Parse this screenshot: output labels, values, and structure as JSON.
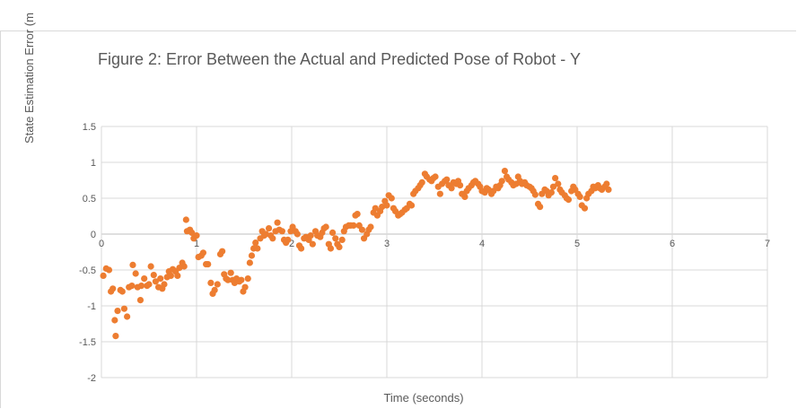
{
  "chart_data": {
    "type": "scatter",
    "title": "Figure 2: Error Between the Actual and Predicted Pose of Robot - Y",
    "xlabel": "Time (seconds)",
    "ylabel": "State Estimation Error (m",
    "xlim": [
      0,
      7
    ],
    "ylim": [
      -2,
      1.5
    ],
    "x_ticks": [
      "0",
      "1",
      "2",
      "3",
      "4",
      "5",
      "6",
      "7"
    ],
    "y_ticks": [
      "1.5",
      "1",
      "0.5",
      "0",
      "-0.5",
      "-1",
      "-1.5",
      "-2"
    ],
    "grid": true,
    "legend": "none",
    "marker_color": "#ED7D31",
    "series": [
      {
        "points": [
          [
            0.02,
            -0.58
          ],
          [
            0.05,
            -0.48
          ],
          [
            0.08,
            -0.5
          ],
          [
            0.1,
            -0.8
          ],
          [
            0.12,
            -0.76
          ],
          [
            0.14,
            -1.2
          ],
          [
            0.15,
            -1.42
          ],
          [
            0.17,
            -1.07
          ],
          [
            0.2,
            -0.78
          ],
          [
            0.22,
            -0.8
          ],
          [
            0.24,
            -1.04
          ],
          [
            0.27,
            -1.15
          ],
          [
            0.29,
            -0.74
          ],
          [
            0.32,
            -0.72
          ],
          [
            0.33,
            -0.43
          ],
          [
            0.36,
            -0.55
          ],
          [
            0.38,
            -0.74
          ],
          [
            0.41,
            -0.92
          ],
          [
            0.42,
            -0.72
          ],
          [
            0.45,
            -0.62
          ],
          [
            0.48,
            -0.72
          ],
          [
            0.5,
            -0.7
          ],
          [
            0.52,
            -0.45
          ],
          [
            0.55,
            -0.57
          ],
          [
            0.57,
            -0.66
          ],
          [
            0.6,
            -0.74
          ],
          [
            0.62,
            -0.62
          ],
          [
            0.64,
            -0.76
          ],
          [
            0.66,
            -0.7
          ],
          [
            0.69,
            -0.6
          ],
          [
            0.71,
            -0.52
          ],
          [
            0.73,
            -0.58
          ],
          [
            0.75,
            -0.49
          ],
          [
            0.78,
            -0.52
          ],
          [
            0.8,
            -0.58
          ],
          [
            0.82,
            -0.47
          ],
          [
            0.85,
            -0.4
          ],
          [
            0.87,
            -0.45
          ],
          [
            0.89,
            0.2
          ],
          [
            0.9,
            0.04
          ],
          [
            0.93,
            0.06
          ],
          [
            0.95,
            0.02
          ],
          [
            0.97,
            -0.06
          ],
          [
            1.0,
            -0.02
          ],
          [
            1.02,
            -0.32
          ],
          [
            1.05,
            -0.3
          ],
          [
            1.07,
            -0.26
          ],
          [
            1.1,
            -0.42
          ],
          [
            1.12,
            -0.42
          ],
          [
            1.15,
            -0.68
          ],
          [
            1.17,
            -0.83
          ],
          [
            1.19,
            -0.78
          ],
          [
            1.22,
            -0.7
          ],
          [
            1.25,
            -0.28
          ],
          [
            1.27,
            -0.24
          ],
          [
            1.29,
            -0.56
          ],
          [
            1.31,
            -0.62
          ],
          [
            1.33,
            -0.64
          ],
          [
            1.36,
            -0.54
          ],
          [
            1.38,
            -0.64
          ],
          [
            1.4,
            -0.68
          ],
          [
            1.42,
            -0.62
          ],
          [
            1.45,
            -0.66
          ],
          [
            1.47,
            -0.64
          ],
          [
            1.49,
            -0.8
          ],
          [
            1.51,
            -0.74
          ],
          [
            1.54,
            -0.62
          ],
          [
            1.56,
            -0.4
          ],
          [
            1.58,
            -0.3
          ],
          [
            1.6,
            -0.2
          ],
          [
            1.62,
            -0.12
          ],
          [
            1.64,
            -0.2
          ],
          [
            1.67,
            -0.06
          ],
          [
            1.69,
            0.04
          ],
          [
            1.71,
            -0.02
          ],
          [
            1.73,
            0.0
          ],
          [
            1.76,
            0.08
          ],
          [
            1.78,
            -0.02
          ],
          [
            1.8,
            -0.06
          ],
          [
            1.83,
            0.04
          ],
          [
            1.85,
            0.16
          ],
          [
            1.87,
            0.06
          ],
          [
            1.9,
            0.04
          ],
          [
            1.92,
            -0.08
          ],
          [
            1.94,
            -0.12
          ],
          [
            1.96,
            -0.08
          ],
          [
            1.99,
            0.04
          ],
          [
            2.01,
            0.1
          ],
          [
            2.04,
            0.04
          ],
          [
            2.06,
            0.0
          ],
          [
            2.08,
            -0.16
          ],
          [
            2.1,
            -0.2
          ],
          [
            2.13,
            -0.06
          ],
          [
            2.15,
            -0.04
          ],
          [
            2.18,
            -0.08
          ],
          [
            2.2,
            -0.02
          ],
          [
            2.22,
            -0.14
          ],
          [
            2.25,
            0.04
          ],
          [
            2.27,
            -0.02
          ],
          [
            2.3,
            -0.04
          ],
          [
            2.32,
            0.02
          ],
          [
            2.34,
            0.08
          ],
          [
            2.36,
            0.1
          ],
          [
            2.39,
            -0.14
          ],
          [
            2.41,
            -0.2
          ],
          [
            2.43,
            0.02
          ],
          [
            2.46,
            -0.06
          ],
          [
            2.48,
            -0.14
          ],
          [
            2.5,
            -0.18
          ],
          [
            2.53,
            -0.08
          ],
          [
            2.55,
            0.04
          ],
          [
            2.57,
            0.1
          ],
          [
            2.6,
            0.12
          ],
          [
            2.62,
            0.12
          ],
          [
            2.65,
            0.12
          ],
          [
            2.67,
            0.26
          ],
          [
            2.69,
            0.28
          ],
          [
            2.71,
            0.12
          ],
          [
            2.74,
            0.06
          ],
          [
            2.76,
            -0.06
          ],
          [
            2.79,
            0.0
          ],
          [
            2.81,
            0.06
          ],
          [
            2.83,
            0.1
          ],
          [
            2.86,
            0.3
          ],
          [
            2.88,
            0.36
          ],
          [
            2.9,
            0.26
          ],
          [
            2.93,
            0.32
          ],
          [
            2.95,
            0.38
          ],
          [
            2.98,
            0.46
          ],
          [
            3.0,
            0.4
          ],
          [
            3.02,
            0.54
          ],
          [
            3.05,
            0.5
          ],
          [
            3.07,
            0.36
          ],
          [
            3.09,
            0.32
          ],
          [
            3.12,
            0.26
          ],
          [
            3.14,
            0.28
          ],
          [
            3.16,
            0.3
          ],
          [
            3.19,
            0.34
          ],
          [
            3.21,
            0.36
          ],
          [
            3.24,
            0.42
          ],
          [
            3.26,
            0.4
          ],
          [
            3.28,
            0.56
          ],
          [
            3.3,
            0.6
          ],
          [
            3.33,
            0.64
          ],
          [
            3.35,
            0.68
          ],
          [
            3.37,
            0.72
          ],
          [
            3.4,
            0.84
          ],
          [
            3.42,
            0.8
          ],
          [
            3.45,
            0.76
          ],
          [
            3.47,
            0.74
          ],
          [
            3.49,
            0.78
          ],
          [
            3.51,
            0.8
          ],
          [
            3.54,
            0.66
          ],
          [
            3.56,
            0.56
          ],
          [
            3.58,
            0.7
          ],
          [
            3.61,
            0.74
          ],
          [
            3.63,
            0.76
          ],
          [
            3.65,
            0.68
          ],
          [
            3.68,
            0.64
          ],
          [
            3.7,
            0.72
          ],
          [
            3.73,
            0.7
          ],
          [
            3.75,
            0.74
          ],
          [
            3.77,
            0.68
          ],
          [
            3.79,
            0.56
          ],
          [
            3.82,
            0.52
          ],
          [
            3.84,
            0.6
          ],
          [
            3.86,
            0.64
          ],
          [
            3.89,
            0.68
          ],
          [
            3.91,
            0.72
          ],
          [
            3.93,
            0.74
          ],
          [
            3.96,
            0.7
          ],
          [
            3.98,
            0.66
          ],
          [
            4.0,
            0.6
          ],
          [
            4.03,
            0.58
          ],
          [
            4.05,
            0.64
          ],
          [
            4.07,
            0.62
          ],
          [
            4.1,
            0.56
          ],
          [
            4.12,
            0.6
          ],
          [
            4.15,
            0.66
          ],
          [
            4.17,
            0.64
          ],
          [
            4.19,
            0.68
          ],
          [
            4.21,
            0.74
          ],
          [
            4.24,
            0.88
          ],
          [
            4.26,
            0.8
          ],
          [
            4.28,
            0.76
          ],
          [
            4.31,
            0.72
          ],
          [
            4.33,
            0.68
          ],
          [
            4.36,
            0.7
          ],
          [
            4.38,
            0.8
          ],
          [
            4.4,
            0.74
          ],
          [
            4.42,
            0.7
          ],
          [
            4.45,
            0.72
          ],
          [
            4.47,
            0.68
          ],
          [
            4.5,
            0.66
          ],
          [
            4.52,
            0.64
          ],
          [
            4.54,
            0.6
          ],
          [
            4.56,
            0.55
          ],
          [
            4.59,
            0.42
          ],
          [
            4.61,
            0.38
          ],
          [
            4.63,
            0.56
          ],
          [
            4.66,
            0.62
          ],
          [
            4.68,
            0.6
          ],
          [
            4.7,
            0.54
          ],
          [
            4.73,
            0.58
          ],
          [
            4.75,
            0.66
          ],
          [
            4.77,
            0.78
          ],
          [
            4.8,
            0.7
          ],
          [
            4.82,
            0.62
          ],
          [
            4.84,
            0.58
          ],
          [
            4.87,
            0.54
          ],
          [
            4.89,
            0.5
          ],
          [
            4.91,
            0.48
          ],
          [
            4.94,
            0.6
          ],
          [
            4.96,
            0.66
          ],
          [
            4.98,
            0.62
          ],
          [
            5.01,
            0.56
          ],
          [
            5.03,
            0.52
          ],
          [
            5.05,
            0.4
          ],
          [
            5.08,
            0.36
          ],
          [
            5.1,
            0.5
          ],
          [
            5.12,
            0.56
          ],
          [
            5.15,
            0.6
          ],
          [
            5.17,
            0.66
          ],
          [
            5.19,
            0.64
          ],
          [
            5.22,
            0.68
          ],
          [
            5.24,
            0.64
          ],
          [
            5.26,
            0.62
          ],
          [
            5.29,
            0.66
          ],
          [
            5.31,
            0.7
          ],
          [
            5.33,
            0.62
          ]
        ]
      }
    ]
  }
}
